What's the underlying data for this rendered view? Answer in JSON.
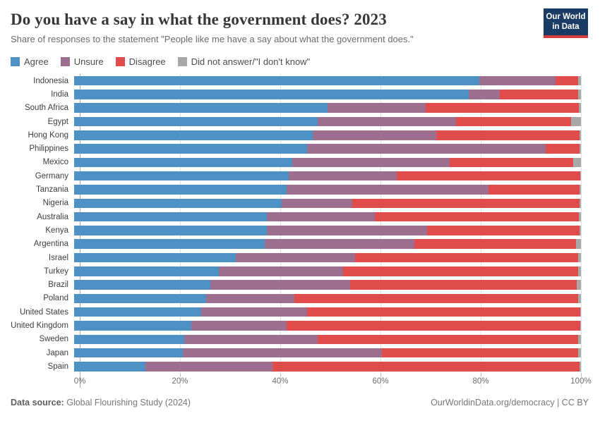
{
  "header": {
    "title": "Do you have a say in what the government does? 2023",
    "subtitle": "Share of responses to the statement \"People like me have a say about what the government does.\"",
    "logo": {
      "line1": "Our World",
      "line2": "in Data",
      "bg_color": "#1a3c64",
      "accent_color": "#d13b3b"
    }
  },
  "legend": [
    {
      "label": "Agree",
      "color": "#4e91c5"
    },
    {
      "label": "Unsure",
      "color": "#9c6f8e"
    },
    {
      "label": "Disagree",
      "color": "#e04c4c"
    },
    {
      "label": "Did not answer/\"I don't know\"",
      "color": "#a8a8a8"
    }
  ],
  "chart_data": {
    "type": "bar",
    "orientation": "horizontal",
    "stacked": true,
    "unit": "%",
    "xlim": [
      0,
      100
    ],
    "x_ticks": [
      "0%",
      "20%",
      "40%",
      "60%",
      "80%",
      "100%"
    ],
    "grid": true,
    "categories": [
      "Indonesia",
      "India",
      "South Africa",
      "Egypt",
      "Hong Kong",
      "Philippines",
      "Mexico",
      "Germany",
      "Tanzania",
      "Nigeria",
      "Australia",
      "Kenya",
      "Argentina",
      "Israel",
      "Turkey",
      "Brazil",
      "Poland",
      "United States",
      "United Kingdom",
      "Sweden",
      "Japan",
      "Spain"
    ],
    "series": [
      {
        "name": "Agree",
        "color": "#4e91c5",
        "values": [
          80.0,
          77.9,
          50.0,
          48.0,
          47.1,
          45.9,
          43.1,
          42.3,
          41.9,
          40.9,
          38.0,
          38.0,
          37.6,
          31.9,
          28.6,
          26.9,
          26.0,
          25.1,
          23.1,
          21.7,
          21.4,
          14.1
        ]
      },
      {
        "name": "Unsure",
        "color": "#9c6f8e",
        "values": [
          15.0,
          6.1,
          19.4,
          27.4,
          24.3,
          47.2,
          31.0,
          21.4,
          39.8,
          14.0,
          21.3,
          31.6,
          29.5,
          23.5,
          24.5,
          27.5,
          17.4,
          20.9,
          18.8,
          26.3,
          39.3,
          25.0
        ]
      },
      {
        "name": "Disagree",
        "color": "#e04c4c",
        "values": [
          4.4,
          15.4,
          30.2,
          22.6,
          28.3,
          6.6,
          24.4,
          36.1,
          18.0,
          44.8,
          40.3,
          30.1,
          31.9,
          44.0,
          46.3,
          44.8,
          56.0,
          53.8,
          57.9,
          51.4,
          38.8,
          60.6
        ]
      },
      {
        "name": "Did not answer/\"I don't know\"",
        "color": "#a8a8a8",
        "values": [
          0.6,
          0.6,
          0.4,
          2.0,
          0.3,
          0.3,
          1.5,
          0.2,
          0.3,
          0.3,
          0.4,
          0.3,
          1.0,
          0.6,
          0.6,
          0.8,
          0.6,
          0.2,
          0.2,
          0.6,
          0.5,
          0.3
        ]
      }
    ],
    "title": "Do you have a say in what the government does? 2023",
    "xlabel": "",
    "ylabel": ""
  },
  "footer": {
    "source_label": "Data source:",
    "source_value": "Global Flourishing Study (2024)",
    "attribution": "OurWorldinData.org/democracy | CC BY"
  }
}
